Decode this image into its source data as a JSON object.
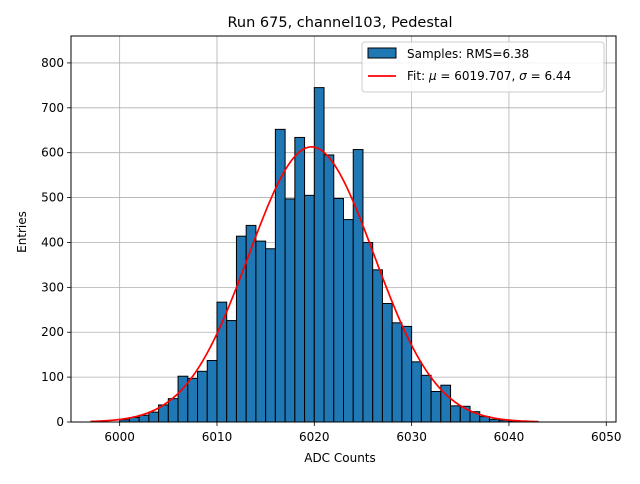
{
  "chart_data": {
    "type": "bar",
    "title": "Run 675, channel103, Pedestal",
    "xlabel": "ADC Counts",
    "ylabel": "Entries",
    "xlim": [
      5995,
      6051
    ],
    "ylim": [
      0,
      860
    ],
    "xticks": [
      6000,
      6010,
      6020,
      6030,
      6040,
      6050
    ],
    "yticks": [
      0,
      100,
      200,
      300,
      400,
      500,
      600,
      700,
      800
    ],
    "grid": true,
    "legend_position": "top-right",
    "bin_width": 1,
    "bins": {
      "left_edges": [
        6000,
        6001,
        6002,
        6003,
        6004,
        6005,
        6006,
        6007,
        6008,
        6009,
        6010,
        6011,
        6012,
        6013,
        6014,
        6015,
        6016,
        6017,
        6018,
        6019,
        6020,
        6021,
        6022,
        6023,
        6024,
        6025,
        6026,
        6027,
        6028,
        6029,
        6030,
        6031,
        6032,
        6033,
        6034,
        6035,
        6036,
        6037,
        6038,
        6039,
        6040,
        6041,
        6042
      ],
      "counts": [
        5,
        10,
        15,
        22,
        38,
        52,
        102,
        97,
        113,
        137,
        267,
        226,
        414,
        438,
        403,
        386,
        652,
        497,
        634,
        505,
        745,
        595,
        498,
        451,
        607,
        400,
        339,
        264,
        221,
        213,
        134,
        104,
        68,
        82,
        36,
        35,
        23,
        12,
        6,
        4,
        2,
        1,
        1
      ]
    },
    "series": [
      {
        "name": "Samples: RMS=6.38",
        "kind": "histogram",
        "color": "#1f77b4",
        "edgecolor": "#000000"
      },
      {
        "name": "Fit: μ = 6019.707, σ = 6.44",
        "kind": "gaussian",
        "color": "#ff0000",
        "mu": 6019.707,
        "sigma": 6.44,
        "amplitude": 613,
        "x_range": [
          5997,
          6043
        ]
      }
    ]
  },
  "legend": {
    "samples_label": "Samples: RMS=6.38",
    "fit_label_prefix": "Fit: ",
    "mu_symbol": "μ",
    "fit_mu_text": " = 6019.707, ",
    "sigma_symbol": "σ",
    "fit_sigma_text": " = 6.44"
  }
}
